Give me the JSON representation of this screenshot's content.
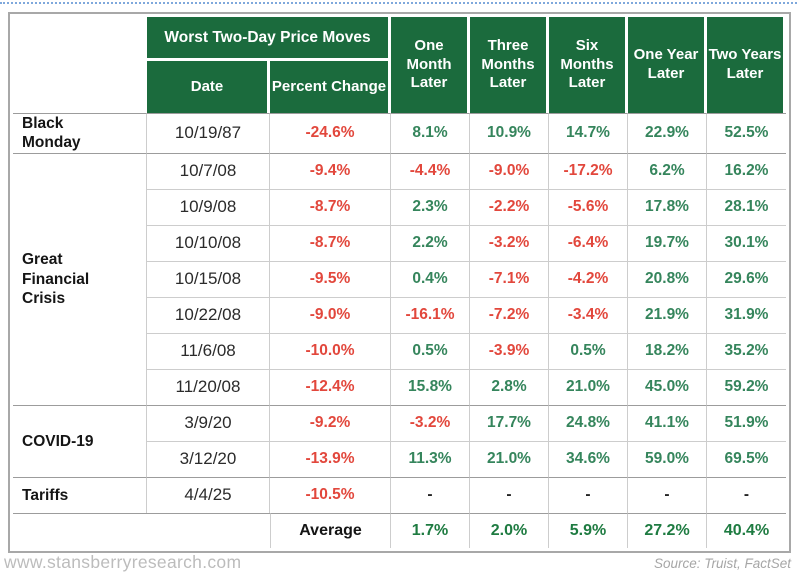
{
  "page": {
    "footer_left": "www.stansberryresearch.com",
    "footer_right": "Source: Truist, FactSet"
  },
  "colors": {
    "header_green": "#1B6B3D",
    "positive_green": "#35855C",
    "negative_red": "#E2473C",
    "average_green": "#1E7B41",
    "dotted_line_blue": "#7FA8DC"
  },
  "chart_data": {
    "type": "table",
    "title": "Worst Two-Day Price Moves",
    "header": {
      "span_label": "Worst Two-Day Price Moves",
      "date_label": "Date",
      "percent_change_label": "Percent Change",
      "later_columns": [
        "One Month Later",
        "Three Months Later",
        "Six Months Later",
        "One Year Later",
        "Two Years Later"
      ]
    },
    "groups": [
      {
        "event": "Black Monday",
        "rows": [
          {
            "date": "10/19/87",
            "percent_change": "-24.6%",
            "later": [
              "8.1%",
              "10.9%",
              "14.7%",
              "22.9%",
              "52.5%"
            ]
          }
        ]
      },
      {
        "event": "Great Financial Crisis",
        "rows": [
          {
            "date": "10/7/08",
            "percent_change": "-9.4%",
            "later": [
              "-4.4%",
              "-9.0%",
              "-17.2%",
              "6.2%",
              "16.2%"
            ]
          },
          {
            "date": "10/9/08",
            "percent_change": "-8.7%",
            "later": [
              "2.3%",
              "-2.2%",
              "-5.6%",
              "17.8%",
              "28.1%"
            ]
          },
          {
            "date": "10/10/08",
            "percent_change": "-8.7%",
            "later": [
              "2.2%",
              "-3.2%",
              "-6.4%",
              "19.7%",
              "30.1%"
            ]
          },
          {
            "date": "10/15/08",
            "percent_change": "-9.5%",
            "later": [
              "0.4%",
              "-7.1%",
              "-4.2%",
              "20.8%",
              "29.6%"
            ]
          },
          {
            "date": "10/22/08",
            "percent_change": "-9.0%",
            "later": [
              "-16.1%",
              "-7.2%",
              "-3.4%",
              "21.9%",
              "31.9%"
            ]
          },
          {
            "date": "11/6/08",
            "percent_change": "-10.0%",
            "later": [
              "0.5%",
              "-3.9%",
              "0.5%",
              "18.2%",
              "35.2%"
            ]
          },
          {
            "date": "11/20/08",
            "percent_change": "-12.4%",
            "later": [
              "15.8%",
              "2.8%",
              "21.0%",
              "45.0%",
              "59.2%"
            ]
          }
        ]
      },
      {
        "event": "COVID-19",
        "rows": [
          {
            "date": "3/9/20",
            "percent_change": "-9.2%",
            "later": [
              "-3.2%",
              "17.7%",
              "24.8%",
              "41.1%",
              "51.9%"
            ]
          },
          {
            "date": "3/12/20",
            "percent_change": "-13.9%",
            "later": [
              "11.3%",
              "21.0%",
              "34.6%",
              "59.0%",
              "69.5%"
            ]
          }
        ]
      },
      {
        "event": "Tariffs",
        "rows": [
          {
            "date": "4/4/25",
            "percent_change": "-10.5%",
            "later": [
              "-",
              "-",
              "-",
              "-",
              "-"
            ]
          }
        ]
      }
    ],
    "average": {
      "label": "Average",
      "values": [
        "1.7%",
        "2.0%",
        "5.9%",
        "27.2%",
        "40.4%"
      ]
    }
  }
}
